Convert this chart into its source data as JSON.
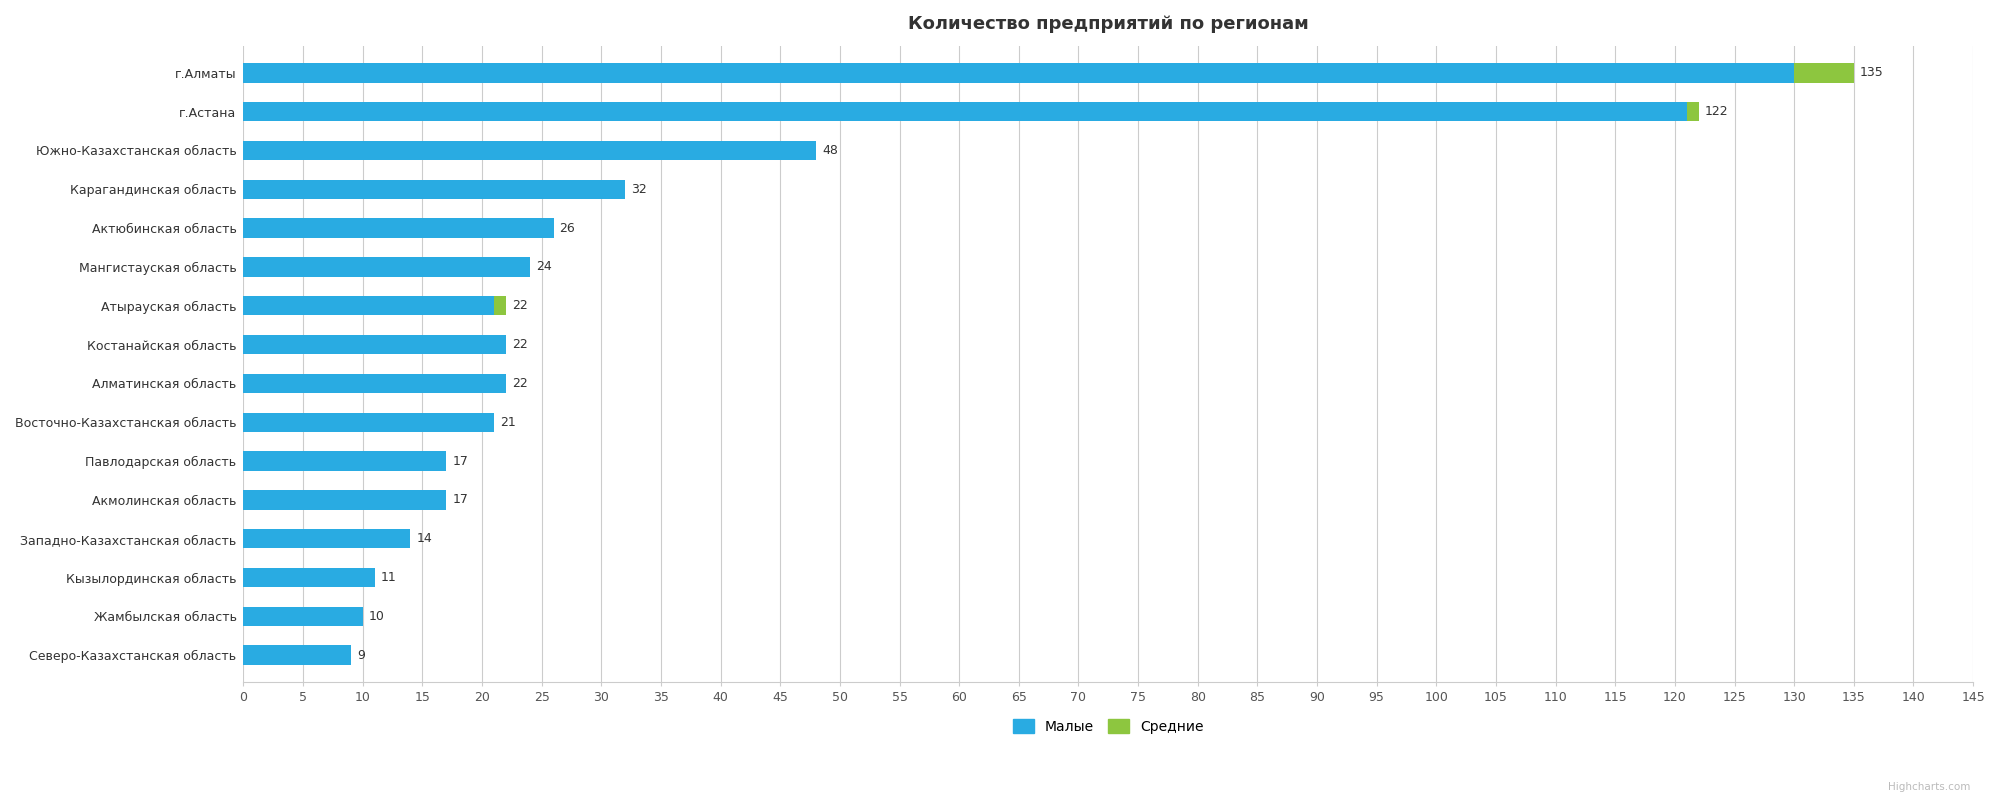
{
  "title": "Количество предприятий по регионам",
  "categories": [
    "г.Алматы",
    "г.Астана",
    "Южно-Казахстанская область",
    "Карагандинская область",
    "Актюбинская область",
    "Мангистауская область",
    "Атырауская область",
    "Костанайская область",
    "Алматинская область",
    "Восточно-Казахстанская область",
    "Павлодарская область",
    "Акмолинская область",
    "Западно-Казахстанская область",
    "Кызылординская область",
    "Жамбылская область",
    "Северо-Казахстанская область"
  ],
  "blue_values": [
    130,
    121,
    48,
    32,
    26,
    24,
    21,
    22,
    22,
    21,
    17,
    17,
    14,
    11,
    10,
    9
  ],
  "green_values": [
    5,
    1,
    0,
    0,
    0,
    0,
    1,
    0,
    0,
    0,
    0,
    0,
    0,
    0,
    0,
    0
  ],
  "labels": [
    135,
    122,
    48,
    32,
    26,
    24,
    22,
    22,
    22,
    21,
    17,
    17,
    14,
    11,
    10,
    9
  ],
  "blue_color": "#29ABE2",
  "green_color": "#8DC63F",
  "background_color": "#FFFFFF",
  "grid_color": "#CCCCCC",
  "title_fontsize": 13,
  "label_fontsize": 9,
  "tick_fontsize": 9,
  "xlim": [
    0,
    145
  ],
  "xticks": [
    0,
    5,
    10,
    15,
    20,
    25,
    30,
    35,
    40,
    45,
    50,
    55,
    60,
    65,
    70,
    75,
    80,
    85,
    90,
    95,
    100,
    105,
    110,
    115,
    120,
    125,
    130,
    135,
    140,
    145
  ],
  "legend_labels": [
    "Малые",
    "Средние"
  ],
  "bar_height": 0.5,
  "watermark": "Highcharts.com"
}
